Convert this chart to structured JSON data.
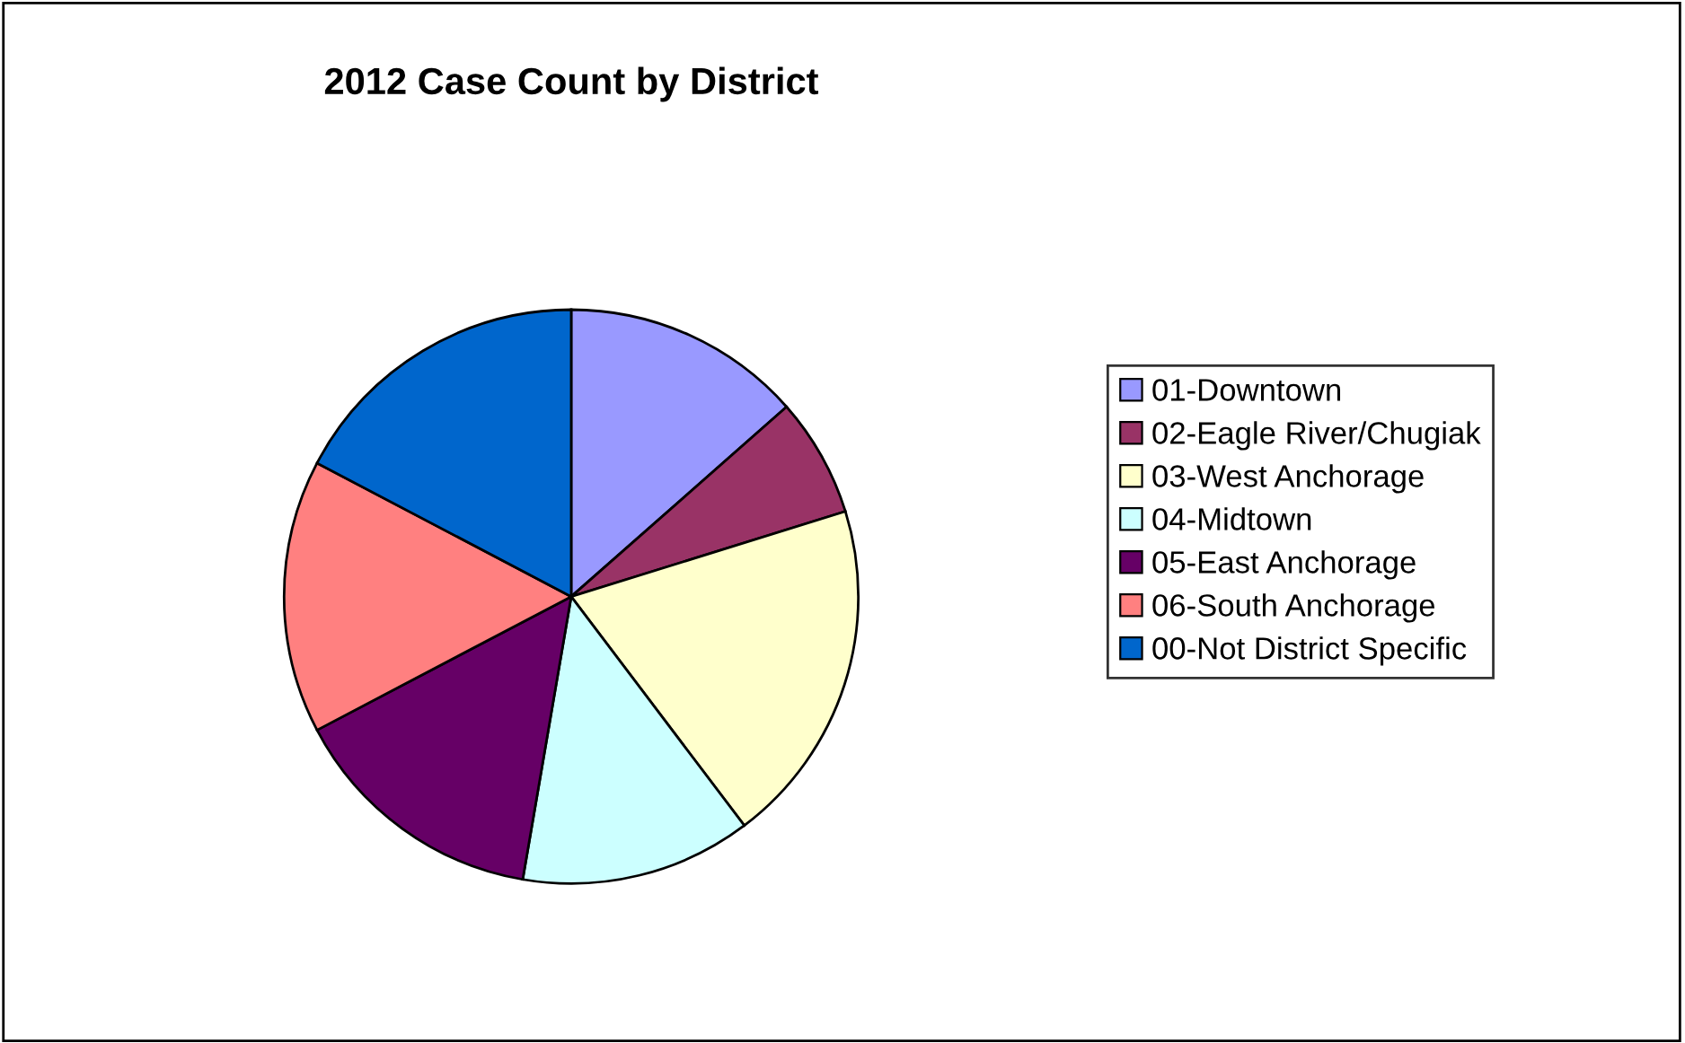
{
  "chart_data": {
    "type": "pie",
    "title": "2012 Case Count by District",
    "categories": [
      "01-Downtown",
      "02-Eagle River/Chugiak",
      "03-West Anchorage",
      "04-Midtown",
      "05-East Anchorage",
      "06-South Anchorage",
      "00-Not District Specific"
    ],
    "values": [
      13.5,
      6.7,
      19.5,
      13.0,
      14.6,
      15.4,
      17.3
    ],
    "colors": [
      "#9999ff",
      "#993366",
      "#ffffcc",
      "#ccffff",
      "#660066",
      "#ff8080",
      "#0066cc"
    ],
    "legend": "right"
  }
}
